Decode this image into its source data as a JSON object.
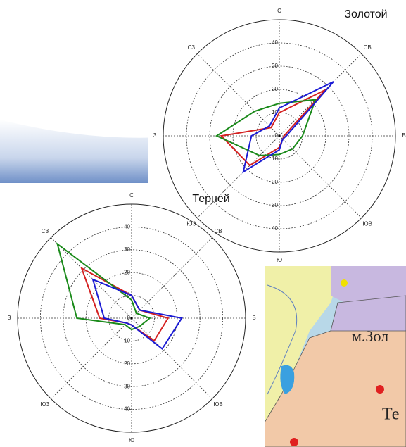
{
  "chart_data": [
    {
      "type": "radar",
      "title": "Золотой",
      "categories": [
        "С",
        "СВ",
        "В",
        "ЮВ",
        "Ю",
        "ЮЗ",
        "З",
        "СЗ"
      ],
      "rlim": [
        0,
        50
      ],
      "rticks": [
        0,
        10,
        20,
        30,
        40
      ],
      "grid": true,
      "series": [
        {
          "color": "#d42020",
          "values": [
            10,
            28,
            2,
            2,
            5,
            18,
            25,
            5
          ]
        },
        {
          "color": "#1a8a1a",
          "values": [
            14,
            22,
            10,
            8,
            8,
            12,
            27,
            15
          ]
        },
        {
          "color": "#1a1ad4",
          "values": [
            12,
            33,
            3,
            2,
            6,
            22,
            12,
            6
          ]
        }
      ]
    },
    {
      "type": "radar",
      "title": "Терней",
      "categories": [
        "С",
        "СВ",
        "В",
        "ЮВ",
        "Ю",
        "ЮЗ",
        "З",
        "СЗ"
      ],
      "rlim": [
        0,
        50
      ],
      "rticks": [
        0,
        10,
        20,
        30,
        40
      ],
      "grid": true,
      "series": [
        {
          "color": "#d42020",
          "values": [
            10,
            5,
            16,
            14,
            3,
            3,
            14,
            31
          ]
        },
        {
          "color": "#1a8a1a",
          "values": [
            8,
            3,
            8,
            5,
            5,
            4,
            24,
            46
          ]
        },
        {
          "color": "#1a1ad4",
          "values": [
            10,
            5,
            22,
            19,
            3,
            3,
            12,
            24
          ]
        }
      ]
    }
  ],
  "map": {
    "labels": [
      "м.Зол",
      "Те"
    ]
  }
}
